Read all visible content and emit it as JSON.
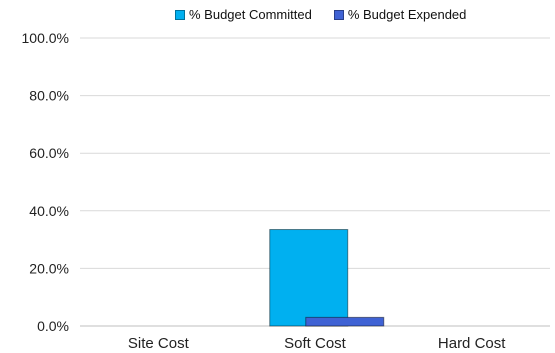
{
  "chart_data": {
    "type": "bar",
    "categories": [
      "Site Cost",
      "Soft Cost",
      "Hard Cost"
    ],
    "series": [
      {
        "name": "% Budget Committed",
        "values": [
          0,
          33.5,
          0
        ],
        "color": "#00b0f0"
      },
      {
        "name": "% Budget Expended",
        "values": [
          0,
          3.0,
          0
        ],
        "color": "#3f62d4"
      }
    ],
    "yticks": [
      "0.0%",
      "20.0%",
      "40.0%",
      "60.0%",
      "80.0%",
      "100.0%"
    ],
    "ylim": [
      0,
      100
    ],
    "grid": true,
    "legend_position": "top"
  }
}
